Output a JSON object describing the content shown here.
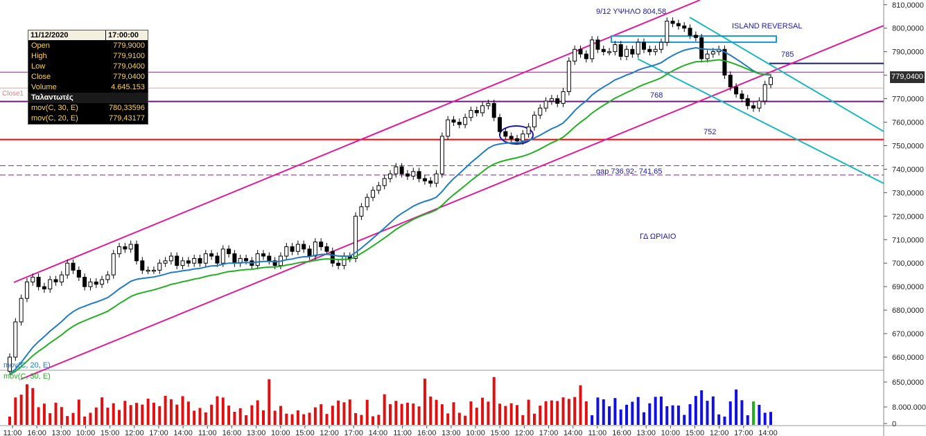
{
  "info_box": {
    "date": "11/12/2020",
    "time": "17:00:00",
    "rows": [
      {
        "label": "Open",
        "value": "779,9000"
      },
      {
        "label": "High",
        "value": "779,9100"
      },
      {
        "label": "Low",
        "value": "779,0400"
      },
      {
        "label": "Close",
        "value": "779,0400"
      },
      {
        "label": "Volume",
        "value": "4.645.153"
      }
    ],
    "section": "Ταλαντωτές",
    "indicators": [
      {
        "label": "mov(C, 30, E)",
        "value": "780,33596"
      },
      {
        "label": "mov(C, 20, E)",
        "value": "779,43177"
      }
    ]
  },
  "annotations": {
    "high": "9/12  ΥΨΗΛΟ 804,58",
    "island": "ISLAND REVERSAL",
    "l785": "785",
    "l768": "768",
    "l752": "752",
    "gap": "gap 736.92- 741.65",
    "title": "ΓΔ  ΩΡΙΑΙΟ",
    "close_tag": "Close1",
    "ma20": "mov(C, 20, E)",
    "ma30": "mov(C, 30, E)",
    "last_price": "779,0400"
  },
  "colors": {
    "up": "#ffffff",
    "down": "#000000",
    "ma20": "#1f7bc4",
    "ma30": "#22b022",
    "channel": "#e0199a",
    "wedge": "#19b8c0",
    "support": "#ff0000",
    "level768": "#6b1a7a",
    "vol_red": "#e01010",
    "vol_blue": "#1010e0",
    "vol_green": "#20b020"
  },
  "chart_data": {
    "type": "candlestick",
    "y_axis_labels": [
      "810,0000",
      "800,0000",
      "790,0000",
      "780,0000",
      "770,0000",
      "760,0000",
      "750,0000",
      "740,0000",
      "730,0000",
      "720,0000",
      "710,0000",
      "700,0000",
      "690,0000",
      "680,0000",
      "670,0000",
      "660,0000"
    ],
    "y_range": [
      655,
      812
    ],
    "volume_axis_labels": [
      "650,0000",
      "8.000.000",
      "0"
    ],
    "x_labels": [
      "11:00",
      "16:00",
      "13:00",
      "10:00",
      "15:00",
      "12:00",
      "17:00",
      "14:00",
      "11:00",
      "16:00",
      "13:00",
      "10:00",
      "15:00",
      "12:00",
      "17:00",
      "14:00",
      "11:00",
      "16:00",
      "13:00",
      "10:00",
      "15:00",
      "12:00",
      "17:00",
      "14:00",
      "11:00",
      "16:00",
      "13:00",
      "10:00",
      "15:00",
      "12:00",
      "17:00",
      "14:00"
    ],
    "closes": [
      660,
      675,
      685,
      692,
      694,
      690,
      689,
      693,
      692,
      695,
      700,
      697,
      694,
      690,
      692,
      691,
      693,
      695,
      704,
      707,
      706,
      708,
      701,
      697,
      697,
      697,
      700,
      701,
      703,
      699,
      701,
      700,
      702,
      700,
      704,
      703,
      700,
      706,
      704,
      700,
      702,
      701,
      699,
      704,
      703,
      701,
      699,
      703,
      707,
      705,
      708,
      706,
      703,
      709,
      707,
      705,
      700,
      699,
      703,
      702,
      720,
      724,
      728,
      731,
      733,
      736,
      738,
      741,
      738,
      737,
      739,
      736,
      735,
      734,
      738,
      754,
      761,
      760,
      759,
      762,
      765,
      764,
      767,
      768,
      762,
      756,
      754,
      753,
      752,
      755,
      758,
      763,
      766,
      769,
      770,
      768,
      773,
      786,
      791,
      789,
      787,
      795,
      791,
      790,
      790,
      793,
      788,
      791,
      789,
      794,
      791,
      790,
      791,
      794,
      803,
      802,
      801,
      800,
      797,
      796,
      787,
      789,
      790,
      791,
      780,
      775,
      772,
      770,
      767,
      766,
      769,
      776,
      779
    ]
  }
}
